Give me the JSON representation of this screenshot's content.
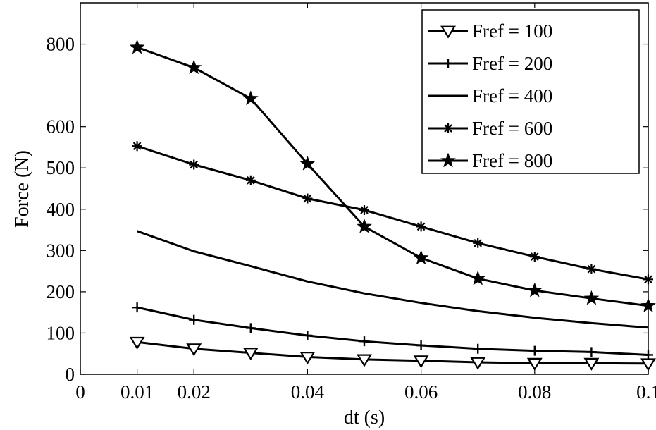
{
  "chart_data": {
    "type": "line",
    "title": "",
    "xlabel": "dt (s)",
    "ylabel": "Force (N)",
    "xlim": [
      0,
      0.1
    ],
    "ylim": [
      0,
      900
    ],
    "grid": false,
    "legend_position": "top-right",
    "x_ticks": [
      0,
      0.01,
      0.02,
      0.04,
      0.06,
      0.08,
      0.1
    ],
    "x_tick_labels": [
      "0",
      "0.01",
      "0.02",
      "0.04",
      "0.06",
      "0.08",
      "0.1"
    ],
    "y_ticks": [
      0,
      100,
      200,
      300,
      400,
      500,
      600,
      800
    ],
    "y_tick_labels": [
      "0",
      "100",
      "200",
      "300",
      "400",
      "500",
      "600",
      "800"
    ],
    "x": [
      0.01,
      0.02,
      0.03,
      0.04,
      0.05,
      0.06,
      0.07,
      0.08,
      0.09,
      0.1
    ],
    "series": [
      {
        "name": "Fref = 100",
        "marker": "triangle-down",
        "values": [
          78,
          62,
          52,
          42,
          36,
          33,
          29,
          27,
          27,
          26
        ]
      },
      {
        "name": "Fref = 200",
        "marker": "plus",
        "values": [
          162,
          132,
          112,
          94,
          80,
          70,
          62,
          57,
          54,
          47
        ]
      },
      {
        "name": "Fref = 400",
        "marker": "none",
        "values": [
          347,
          298,
          262,
          225,
          196,
          173,
          153,
          137,
          124,
          113
        ]
      },
      {
        "name": "Fref = 600",
        "marker": "asterisk",
        "values": [
          553,
          508,
          470,
          426,
          398,
          358,
          318,
          285,
          255,
          230
        ]
      },
      {
        "name": "Fref = 800",
        "marker": "star",
        "values": [
          792,
          743,
          668,
          510,
          358,
          282,
          232,
          203,
          184,
          166
        ]
      }
    ]
  }
}
